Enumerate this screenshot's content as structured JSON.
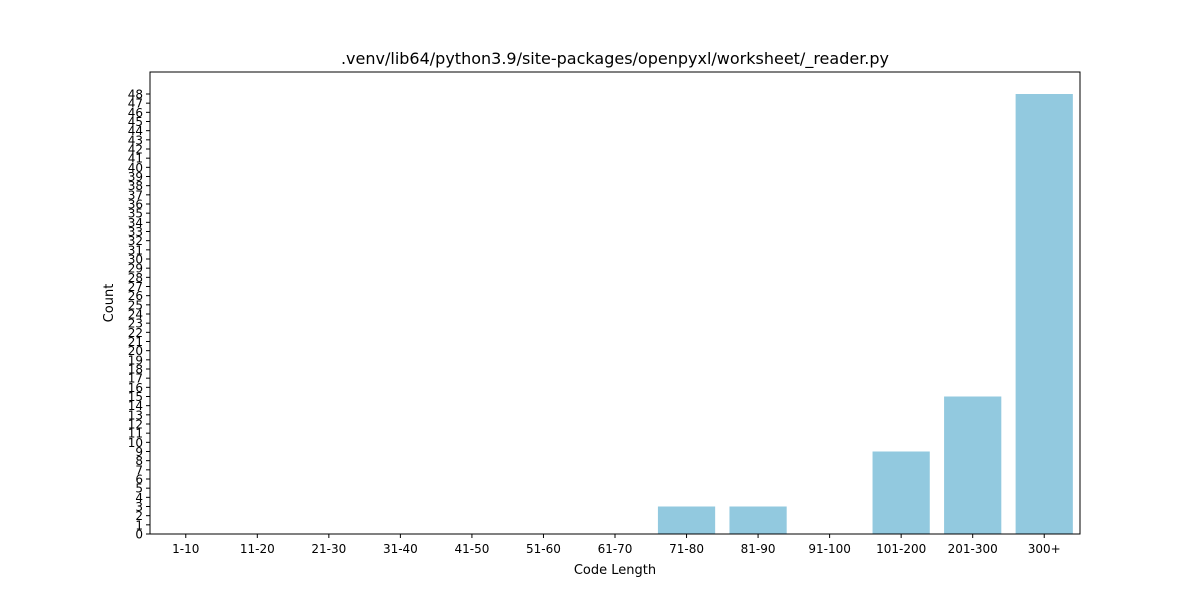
{
  "chart_data": {
    "type": "bar",
    "title": ".venv/lib64/python3.9/site-packages/openpyxl/worksheet/_reader.py",
    "xlabel": "Code Length",
    "ylabel": "Count",
    "categories": [
      "1-10",
      "11-20",
      "21-30",
      "31-40",
      "41-50",
      "51-60",
      "61-70",
      "71-80",
      "81-90",
      "91-100",
      "101-200",
      "201-300",
      "300+"
    ],
    "values": [
      0,
      0,
      0,
      0,
      0,
      0,
      0,
      3,
      3,
      0,
      9,
      15,
      48
    ],
    "ylim": [
      0,
      48
    ],
    "yticks": [
      0,
      1,
      2,
      3,
      4,
      5,
      6,
      7,
      8,
      9,
      10,
      11,
      12,
      13,
      14,
      15,
      16,
      17,
      18,
      19,
      20,
      21,
      22,
      23,
      24,
      25,
      26,
      27,
      28,
      29,
      30,
      31,
      32,
      33,
      34,
      35,
      36,
      37,
      38,
      39,
      40,
      41,
      42,
      43,
      44,
      45,
      46,
      47,
      48
    ],
    "bar_color": "#92c9df",
    "grid": false,
    "legend": "none"
  }
}
